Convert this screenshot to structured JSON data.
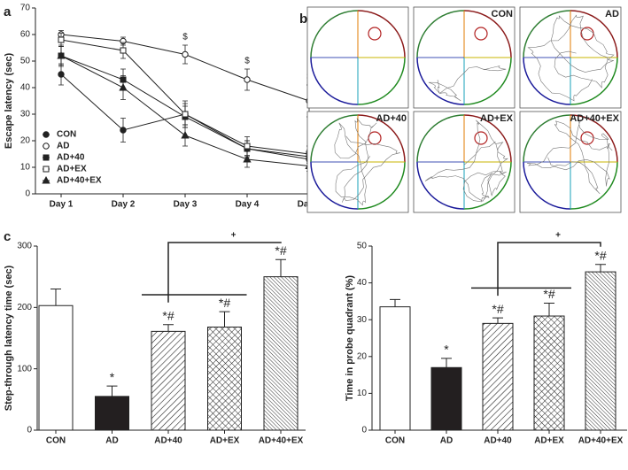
{
  "chart_data": [
    {
      "type": "line",
      "panel_label": "a",
      "y_label": "Escape latency (sec)",
      "categories": [
        "Day 1",
        "Day 2",
        "Day 3",
        "Day 4",
        "Day 5"
      ],
      "ylim": [
        0,
        70
      ],
      "yticks": [
        0,
        10,
        20,
        30,
        40,
        50,
        60,
        70
      ],
      "legend": "lower left",
      "color": "#222",
      "series": [
        {
          "name": "CON",
          "marker": "filled-circle",
          "values": [
            45,
            24,
            30,
            17,
            13
          ],
          "errors": [
            4,
            4.5,
            4,
            3,
            2.5
          ]
        },
        {
          "name": "AD",
          "marker": "open-circle",
          "values": [
            60,
            57.5,
            52.5,
            43,
            35
          ],
          "errors": [
            1.5,
            1.5,
            3.5,
            4,
            6
          ],
          "annotations": [
            null,
            null,
            "$",
            "$",
            "$"
          ]
        },
        {
          "name": "AD+40",
          "marker": "filled-square",
          "values": [
            52,
            43,
            29,
            17,
            14
          ],
          "errors": [
            3.5,
            4,
            4,
            3,
            2.5
          ]
        },
        {
          "name": "AD+EX",
          "marker": "open-square",
          "values": [
            58,
            54,
            30,
            18,
            15
          ],
          "errors": [
            2.5,
            3,
            5,
            3.5,
            3
          ]
        },
        {
          "name": "AD+40+EX",
          "marker": "filled-triangle",
          "values": [
            52,
            40,
            22,
            13,
            10.5
          ],
          "errors": [
            4,
            4.5,
            4,
            3,
            2
          ]
        }
      ]
    },
    {
      "type": "bar",
      "panel_label": "c",
      "y_label": "Step-through latency time (sec)",
      "categories": [
        "CON",
        "AD",
        "AD+40",
        "AD+EX",
        "AD+40+EX"
      ],
      "values": [
        203,
        55,
        161,
        168,
        250
      ],
      "errors": [
        27,
        17,
        11,
        25,
        28
      ],
      "patterns": [
        "none",
        "solid",
        "diagonal",
        "crosshatch",
        "dense-diagonal"
      ],
      "annotations": [
        null,
        "*",
        "*#",
        "*#",
        "*#"
      ],
      "bracket_label": "+",
      "ylim": [
        0,
        300
      ],
      "yticks": [
        0,
        100,
        200,
        300
      ]
    },
    {
      "type": "bar",
      "y_label": "Time in probe quadrant (%)",
      "categories": [
        "CON",
        "AD",
        "AD+40",
        "AD+EX",
        "AD+40+EX"
      ],
      "values": [
        33.5,
        17,
        29,
        31,
        43
      ],
      "errors": [
        2,
        2.5,
        1.5,
        3.5,
        2
      ],
      "patterns": [
        "none",
        "solid",
        "diagonal",
        "crosshatch",
        "dense-diagonal"
      ],
      "annotations": [
        null,
        "*",
        "*#",
        "*#",
        "*#"
      ],
      "bracket_label": "+",
      "ylim": [
        0,
        50
      ],
      "yticks": [
        0,
        10,
        20,
        30,
        40,
        50
      ]
    }
  ],
  "swim_paths": {
    "panel_label": "b",
    "labels": [
      "CON",
      "AD",
      "AD+40",
      "AD+EX",
      "AD+40+EX"
    ]
  }
}
